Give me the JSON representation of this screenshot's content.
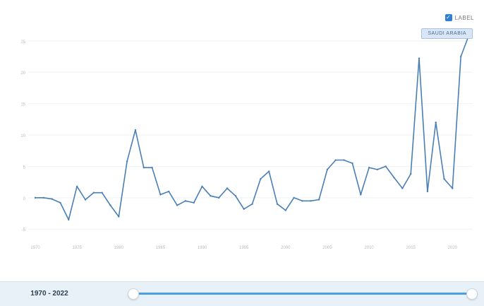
{
  "legend": {
    "label": "LABEL",
    "checked": true,
    "check_glyph": "✓"
  },
  "tooltip": {
    "text": "SAUDI ARABIA"
  },
  "range": {
    "text": "1970 - 2022",
    "start": 1970,
    "end": 2022
  },
  "colors": {
    "line": "#4a7fb5",
    "grid": "#eef2f6",
    "accent": "#2f7fd6"
  },
  "chart_data": {
    "type": "line",
    "title": "",
    "xlabel": "",
    "ylabel": "",
    "x_ticks": [
      1970,
      1975,
      1980,
      1985,
      1990,
      1995,
      2000,
      2005,
      2010,
      2015,
      2020
    ],
    "x_tick_labels": [
      "1970",
      "1975",
      "1980",
      "1985",
      "1990",
      "1995",
      "2000",
      "2005",
      "2010",
      "2015",
      "2020"
    ],
    "y_ticks": [
      -5,
      0,
      5,
      10,
      15,
      20,
      25
    ],
    "y_tick_labels": [
      "-5",
      "0",
      "5",
      "10",
      "15",
      "20",
      "25"
    ],
    "xlim": [
      1970,
      2022
    ],
    "ylim": [
      -7,
      27
    ],
    "grid": true,
    "legend_position": "top-right",
    "series": [
      {
        "name": "SAUDI ARABIA",
        "x": [
          1970,
          1971,
          1972,
          1973,
          1974,
          1975,
          1976,
          1977,
          1978,
          1979,
          1980,
          1981,
          1982,
          1983,
          1984,
          1985,
          1986,
          1987,
          1988,
          1989,
          1990,
          1991,
          1992,
          1993,
          1994,
          1995,
          1996,
          1997,
          1998,
          1999,
          2000,
          2001,
          2002,
          2003,
          2004,
          2005,
          2006,
          2007,
          2008,
          2009,
          2010,
          2011,
          2012,
          2013,
          2014,
          2015,
          2016,
          2017,
          2018,
          2019,
          2020,
          2021,
          2022
        ],
        "values": [
          0,
          0,
          -0.2,
          -0.8,
          -3.5,
          1.8,
          -0.3,
          0.8,
          0.8,
          -1.2,
          -3,
          5.8,
          10.8,
          4.8,
          4.8,
          0.5,
          1,
          -1.2,
          -0.5,
          -0.8,
          1.8,
          0.3,
          0,
          1.5,
          0.3,
          -1.8,
          -1,
          3,
          4.2,
          -1,
          -2,
          0,
          -0.5,
          -0.5,
          -0.3,
          4.5,
          6,
          6,
          5.5,
          0.5,
          4.8,
          4.5,
          5,
          3.2,
          1.5,
          3.8,
          22.2,
          1,
          12,
          3,
          1.5,
          22.5,
          26
        ]
      }
    ]
  }
}
